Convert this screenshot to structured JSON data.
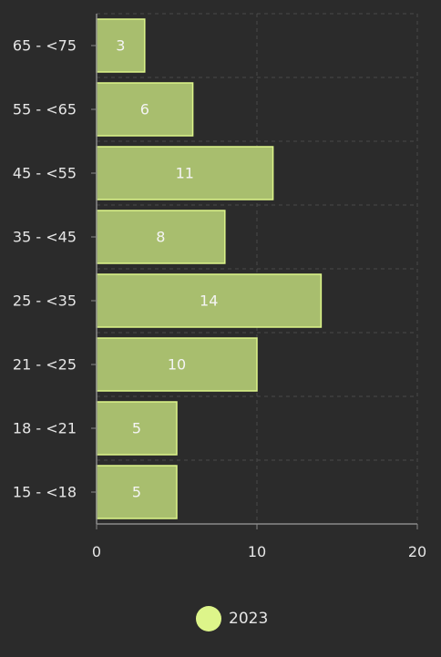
{
  "chart_data": {
    "type": "bar",
    "orientation": "horizontal",
    "categories": [
      "65 - <75",
      "55 - <65",
      "45 - <55",
      "35 - <45",
      "25 - <35",
      "21 - <25",
      "18 - <21",
      "15 - <18"
    ],
    "series": [
      {
        "name": "2023",
        "values": [
          3,
          6,
          11,
          8,
          14,
          10,
          5,
          5
        ]
      }
    ],
    "xlim": [
      0,
      20
    ],
    "xticks": [
      0,
      10,
      20
    ],
    "grid": true,
    "legend_position": "bottom",
    "data_labels": "inside-center"
  },
  "colors": {
    "background": "#2b2b2b",
    "bar_fill": "#a8be6e",
    "bar_stroke": "#ddf58a",
    "legend_marker": "#ddf58a",
    "grid": "#4a4a4a",
    "axis": "#8a8a8a",
    "text": "#e6e6e6",
    "bar_label": "#f4f4f4"
  }
}
